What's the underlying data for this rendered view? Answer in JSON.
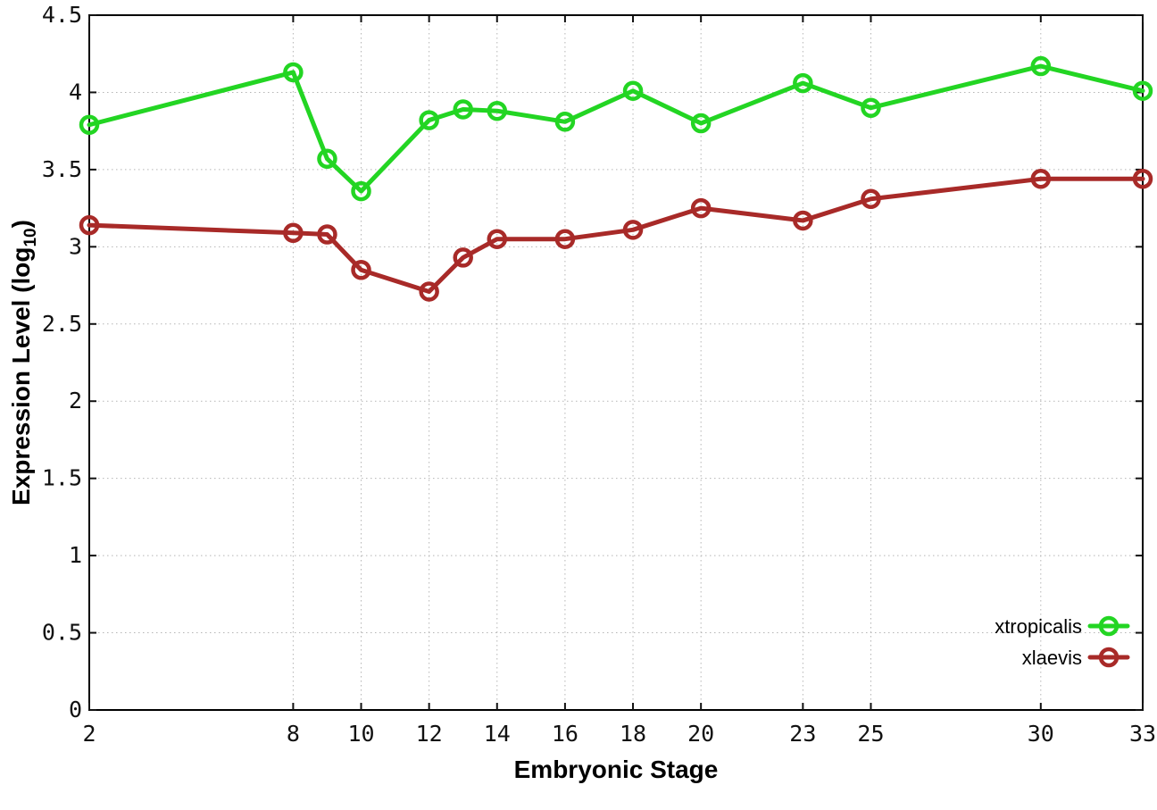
{
  "page": {
    "background": "#ffffff"
  },
  "chart_data": {
    "type": "line",
    "title": "",
    "xlabel": "Embryonic Stage",
    "ylabel": {
      "prefix": "Expression Level (log",
      "subscript": "10",
      "suffix": ")"
    },
    "x": [
      2,
      8,
      9,
      10,
      12,
      13,
      14,
      16,
      18,
      20,
      23,
      25,
      30,
      33
    ],
    "xticks": [
      2,
      8,
      10,
      12,
      14,
      16,
      18,
      20,
      23,
      25,
      30,
      33
    ],
    "yticks": [
      0,
      0.5,
      1,
      1.5,
      2,
      2.5,
      3,
      3.5,
      4,
      4.5
    ],
    "xlim": [
      2,
      33
    ],
    "ylim": [
      0,
      4.5
    ],
    "grid": true,
    "legend_position": "bottom-right",
    "axis_color": "#000000",
    "tick_color": "#111111",
    "grid_color": "#b5b5b5",
    "series": [
      {
        "name": "xtropicalis",
        "color": "#23d523",
        "marker": "open-circle",
        "values": [
          3.79,
          4.13,
          3.57,
          3.36,
          3.82,
          3.89,
          3.88,
          3.81,
          4.01,
          3.8,
          4.06,
          3.9,
          4.17,
          4.01
        ]
      },
      {
        "name": "xlaevis",
        "color": "#a82a28",
        "marker": "open-circle",
        "values": [
          3.14,
          3.09,
          3.08,
          2.85,
          2.71,
          2.93,
          3.05,
          3.05,
          3.11,
          3.25,
          3.17,
          3.31,
          3.44,
          3.44
        ]
      }
    ]
  }
}
